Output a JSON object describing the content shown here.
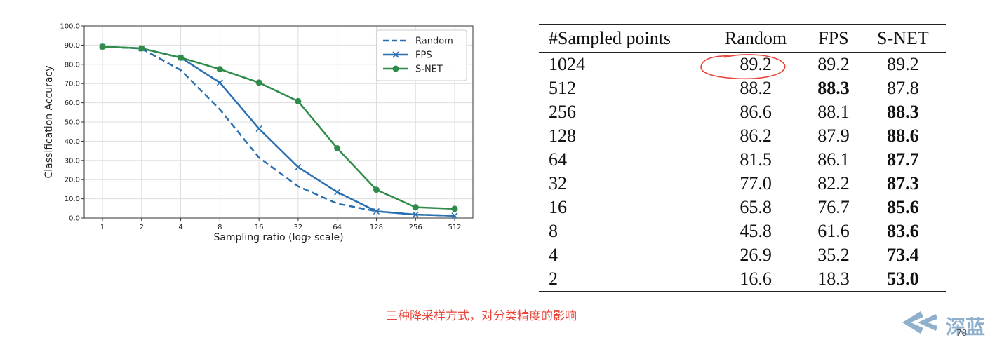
{
  "chart_data": {
    "type": "line",
    "xlabel": "Sampling ratio (log₂ scale)",
    "ylabel": "Classification Accuracy",
    "x": [
      1,
      2,
      4,
      8,
      16,
      32,
      64,
      128,
      256,
      512
    ],
    "x_scale": "log2",
    "ylim": [
      0,
      100
    ],
    "yticks": [
      "0.0",
      "10.0",
      "20.0",
      "30.0",
      "40.0",
      "50.0",
      "60.0",
      "70.0",
      "80.0",
      "90.0",
      "100.0"
    ],
    "xticks": [
      "1",
      "2",
      "4",
      "8",
      "16",
      "32",
      "64",
      "128",
      "256",
      "512"
    ],
    "grid": true,
    "legend_position": "top-right",
    "series": [
      {
        "name": "Random",
        "style": "dashed",
        "marker": "none",
        "color": "#2a6fb0",
        "values": [
          89.2,
          88.2,
          77.0,
          56.5,
          31.5,
          16.5,
          7.5,
          3.5,
          1.8,
          1.2
        ]
      },
      {
        "name": "FPS",
        "style": "solid",
        "marker": "x",
        "color": "#2a6fb0",
        "values": [
          89.2,
          88.3,
          83.5,
          70.5,
          46.5,
          26.5,
          13.5,
          3.5,
          1.8,
          1.2
        ]
      },
      {
        "name": "S-NET",
        "style": "solid",
        "marker": "circle",
        "color": "#2e8b4a",
        "values": [
          89.2,
          88.3,
          83.5,
          77.5,
          70.5,
          60.8,
          36.3,
          14.7,
          5.6,
          4.8
        ]
      }
    ]
  },
  "table": {
    "headers": [
      "#Sampled points",
      "Random",
      "FPS",
      "S-NET"
    ],
    "rows": [
      {
        "cells": [
          "1024",
          "89.2",
          "89.2",
          "89.2"
        ],
        "bold": []
      },
      {
        "cells": [
          "512",
          "88.2",
          "88.3",
          "87.8"
        ],
        "bold": [
          2
        ]
      },
      {
        "cells": [
          "256",
          "86.6",
          "88.1",
          "88.3"
        ],
        "bold": [
          3
        ]
      },
      {
        "cells": [
          "128",
          "86.2",
          "87.9",
          "88.6"
        ],
        "bold": [
          3
        ]
      },
      {
        "cells": [
          "64",
          "81.5",
          "86.1",
          "87.7"
        ],
        "bold": [
          3
        ]
      },
      {
        "cells": [
          "32",
          "77.0",
          "82.2",
          "87.3"
        ],
        "bold": [
          3
        ]
      },
      {
        "cells": [
          "16",
          "65.8",
          "76.7",
          "85.6"
        ],
        "bold": [
          3
        ]
      },
      {
        "cells": [
          "8",
          "45.8",
          "61.6",
          "83.6"
        ],
        "bold": [
          3
        ]
      },
      {
        "cells": [
          "4",
          "26.9",
          "35.2",
          "73.4"
        ],
        "bold": [
          3
        ]
      },
      {
        "cells": [
          "2",
          "16.6",
          "18.3",
          "53.0"
        ],
        "bold": [
          3
        ]
      }
    ]
  },
  "annotation": {
    "color": "#e8443a"
  },
  "caption": "三种降采样方式，对分类精度的影响",
  "logo": {
    "text": "深蓝",
    "color": "#8fb0cc"
  },
  "page_number": "78"
}
